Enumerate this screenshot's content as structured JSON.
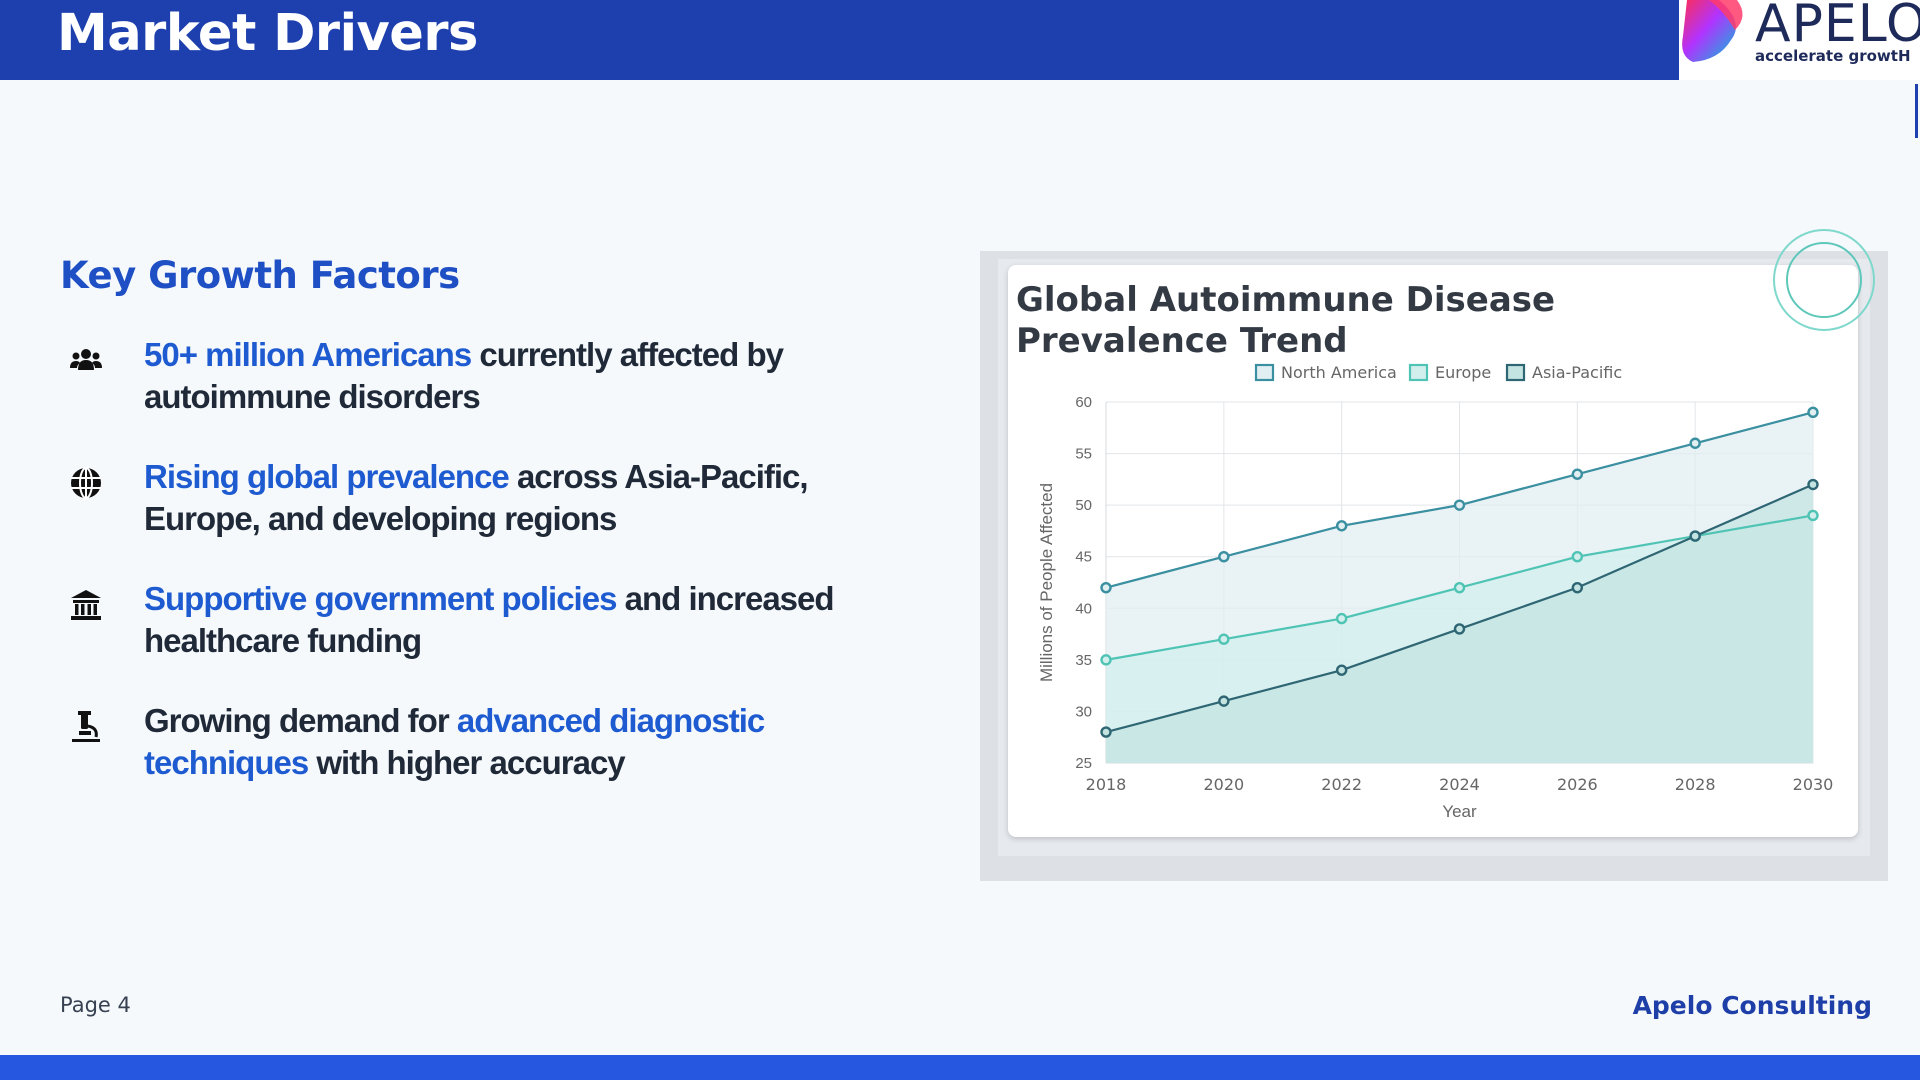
{
  "header": {
    "title": "Market Drivers"
  },
  "logo": {
    "name": "APELO",
    "tagline": "accelerate growtH"
  },
  "section": {
    "title": "Key Growth Factors"
  },
  "factors": [
    {
      "icon": "users-icon",
      "hl1": "50+ million Americans",
      "t1": " currently affected by autoimmune disorders",
      "hl2": "",
      "t2": ""
    },
    {
      "icon": "globe-icon",
      "hl1": "Rising global prevalence",
      "t1": " across Asia-Pacific, Europe, and developing regions",
      "hl2": "",
      "t2": ""
    },
    {
      "icon": "landmark-icon",
      "hl1": "Supportive government policies",
      "t1": " and increased healthcare funding",
      "hl2": "",
      "t2": ""
    },
    {
      "icon": "microscope-icon",
      "pre": "Growing demand for ",
      "hl1": "advanced diagnostic techniques",
      "t1": " with higher accuracy"
    }
  ],
  "chart_data": {
    "type": "area",
    "title": "Global Autoimmune Disease Prevalence Trend",
    "xlabel": "Year",
    "ylabel": "Millions of People Affected",
    "x": [
      "2018",
      "2020",
      "2022",
      "2024",
      "2026",
      "2028",
      "2030"
    ],
    "ylim": [
      25,
      60
    ],
    "yticks": [
      "25",
      "30",
      "35",
      "40",
      "45",
      "50",
      "55",
      "60"
    ],
    "grid": true,
    "legend": "top-center",
    "series": [
      {
        "name": "North America",
        "values": [
          42,
          45,
          48,
          50,
          53,
          56,
          59
        ],
        "color": "#3a8fa0",
        "fill": "#e1eef2"
      },
      {
        "name": "Europe",
        "values": [
          35,
          37,
          39,
          42,
          45,
          47,
          49
        ],
        "color": "#4fc4b4",
        "fill": "#d2efed"
      },
      {
        "name": "Asia-Pacific",
        "values": [
          28,
          31,
          34,
          38,
          42,
          47,
          52
        ],
        "color": "#2f6674",
        "fill": "#c4e4e2"
      }
    ]
  },
  "footer": {
    "page": "Page 4",
    "brand": "Apelo Consulting"
  },
  "colors": {
    "primary": "#1e40af",
    "highlight": "#1e5bd1",
    "footer": "#2557e0"
  }
}
